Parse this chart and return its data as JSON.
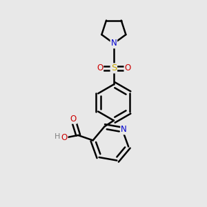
{
  "background_color": "#e8e8e8",
  "bond_color": "#000000",
  "bond_width": 1.8,
  "atom_colors": {
    "N": "#0000cc",
    "O": "#cc0000",
    "S": "#ccaa00",
    "C": "#000000",
    "H": "#808080"
  },
  "font_size": 8.5,
  "fig_width": 3.0,
  "fig_height": 3.0,
  "dpi": 100
}
